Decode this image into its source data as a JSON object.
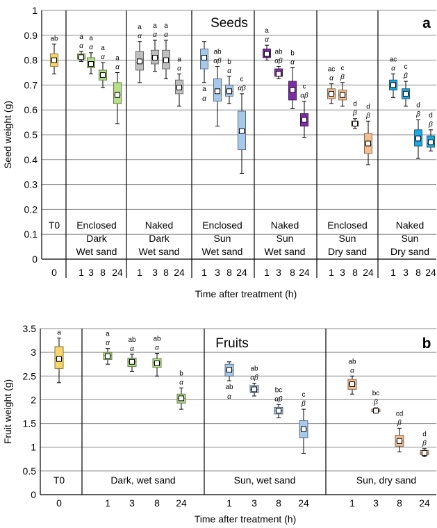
{
  "chart_data": [
    {
      "type": "box",
      "panel_label": "a",
      "title": "Seeds",
      "xlabel": "Time after treatment (h)",
      "ylabel": "Seed weight (g)",
      "ylim": [
        0,
        1
      ],
      "yticks": [
        "0",
        "0.1",
        "0.2",
        "0.3",
        "0.4",
        "0.5",
        "0.6",
        "0.7",
        "0.8",
        "0.9",
        "1"
      ],
      "grid": true,
      "groups": [
        {
          "label": [
            "T0"
          ],
          "color": "#f7d76b",
          "boxes": [
            {
              "x": "0",
              "min": 0.745,
              "q1": 0.775,
              "median": 0.8,
              "mean": 0.8,
              "q3": 0.825,
              "max": 0.865,
              "letter": "ab",
              "greek": ""
            }
          ]
        },
        {
          "label": [
            "Enclosed",
            "Dark",
            "Wet sand"
          ],
          "color": "#b5df89",
          "boxes": [
            {
              "x": "1",
              "min": 0.795,
              "q1": 0.805,
              "median": 0.812,
              "mean": 0.812,
              "q3": 0.825,
              "max": 0.835,
              "letter": "a",
              "greek": "α"
            },
            {
              "x": "3",
              "min": 0.745,
              "q1": 0.77,
              "median": 0.79,
              "mean": 0.785,
              "q3": 0.81,
              "max": 0.83,
              "letter": "a",
              "greek": "α"
            },
            {
              "x": "8",
              "min": 0.69,
              "q1": 0.72,
              "median": 0.74,
              "mean": 0.74,
              "q3": 0.76,
              "max": 0.79,
              "letter": "a",
              "greek": "α"
            },
            {
              "x": "24",
              "min": 0.545,
              "q1": 0.625,
              "median": 0.66,
              "mean": 0.66,
              "q3": 0.71,
              "max": 0.75,
              "letter": "a",
              "greek": "α"
            }
          ]
        },
        {
          "label": [
            "Naked",
            "Dark",
            "Wet sand"
          ],
          "color": "#bfbfbf",
          "boxes": [
            {
              "x": "1",
              "min": 0.71,
              "q1": 0.76,
              "median": 0.79,
              "mean": 0.795,
              "q3": 0.835,
              "max": 0.875,
              "letter": "a",
              "greek": "α"
            },
            {
              "x": "3",
              "min": 0.755,
              "q1": 0.785,
              "median": 0.81,
              "mean": 0.81,
              "q3": 0.84,
              "max": 0.88,
              "letter": "a",
              "greek": "α"
            },
            {
              "x": "8",
              "min": 0.725,
              "q1": 0.765,
              "median": 0.8,
              "mean": 0.8,
              "q3": 0.84,
              "max": 0.88,
              "letter": "a",
              "greek": "α"
            },
            {
              "x": "24",
              "min": 0.615,
              "q1": 0.665,
              "median": 0.69,
              "mean": 0.69,
              "q3": 0.72,
              "max": 0.745,
              "letter": "a",
              "greek": "α"
            }
          ]
        },
        {
          "label": [
            "Enclosed",
            "Sun",
            "Wet sand"
          ],
          "color": "#a6c8ea",
          "boxes": [
            {
              "x": "1",
              "min": 0.71,
              "q1": 0.765,
              "median": 0.8,
              "mean": 0.81,
              "q3": 0.845,
              "max": 0.875,
              "letter": "a",
              "greek": "α",
              "label_below": true
            },
            {
              "x": "3",
              "min": 0.535,
              "q1": 0.635,
              "median": 0.68,
              "mean": 0.675,
              "q3": 0.725,
              "max": 0.775,
              "letter": "ab",
              "greek": "αβ"
            },
            {
              "x": "8",
              "min": 0.625,
              "q1": 0.655,
              "median": 0.675,
              "mean": 0.675,
              "q3": 0.7,
              "max": 0.735,
              "letter": "b",
              "greek": "α"
            },
            {
              "x": "24",
              "min": 0.345,
              "q1": 0.44,
              "median": 0.51,
              "mean": 0.515,
              "q3": 0.595,
              "max": 0.665,
              "letter": "c",
              "greek": "αβ"
            }
          ]
        },
        {
          "label": [
            "Naked",
            "Sun",
            "Wet sand"
          ],
          "color": "#7c2ea6",
          "boxes": [
            {
              "x": "1",
              "min": 0.8,
              "q1": 0.81,
              "median": 0.825,
              "mean": 0.825,
              "q3": 0.845,
              "max": 0.86,
              "letter": "a",
              "greek": "α"
            },
            {
              "x": "3",
              "min": 0.725,
              "q1": 0.735,
              "median": 0.745,
              "mean": 0.745,
              "q3": 0.765,
              "max": 0.775,
              "letter": "ab",
              "greek": "αβ"
            },
            {
              "x": "8",
              "min": 0.605,
              "q1": 0.64,
              "median": 0.675,
              "mean": 0.68,
              "q3": 0.715,
              "max": 0.77,
              "letter": "b",
              "greek": "α"
            },
            {
              "x": "24",
              "min": 0.49,
              "q1": 0.535,
              "median": 0.56,
              "mean": 0.56,
              "q3": 0.585,
              "max": 0.635,
              "letter": "c",
              "greek": "αβ"
            }
          ]
        },
        {
          "label": [
            "Enclosed",
            "Sun",
            "Dry sand"
          ],
          "color": "#f2bf91",
          "boxes": [
            {
              "x": "1",
              "min": 0.625,
              "q1": 0.645,
              "median": 0.665,
              "mean": 0.665,
              "q3": 0.685,
              "max": 0.705,
              "letter": "ac",
              "greek": "α"
            },
            {
              "x": "3",
              "min": 0.615,
              "q1": 0.64,
              "median": 0.66,
              "mean": 0.66,
              "q3": 0.68,
              "max": 0.71,
              "letter": "c",
              "greek": "β"
            },
            {
              "x": "8",
              "min": 0.525,
              "q1": 0.535,
              "median": 0.545,
              "mean": 0.545,
              "q3": 0.555,
              "max": 0.565,
              "letter": "d",
              "greek": "β"
            },
            {
              "x": "24",
              "min": 0.38,
              "q1": 0.425,
              "median": 0.46,
              "mean": 0.465,
              "q3": 0.505,
              "max": 0.555,
              "letter": "d",
              "greek": "β"
            }
          ]
        },
        {
          "label": [
            "Naked",
            "Sun",
            "Dry sand"
          ],
          "color": "#1fa9e0",
          "boxes": [
            {
              "x": "1",
              "min": 0.65,
              "q1": 0.68,
              "median": 0.7,
              "mean": 0.7,
              "q3": 0.72,
              "max": 0.745,
              "letter": "ac",
              "greek": "α"
            },
            {
              "x": "3",
              "min": 0.615,
              "q1": 0.645,
              "median": 0.665,
              "mean": 0.665,
              "q3": 0.685,
              "max": 0.715,
              "letter": "c",
              "greek": "β"
            },
            {
              "x": "8",
              "min": 0.405,
              "q1": 0.455,
              "median": 0.485,
              "mean": 0.485,
              "q3": 0.52,
              "max": 0.56,
              "letter": "d",
              "greek": "β"
            },
            {
              "x": "24",
              "min": 0.435,
              "q1": 0.45,
              "median": 0.465,
              "mean": 0.47,
              "q3": 0.495,
              "max": 0.52,
              "letter": "d",
              "greek": "β"
            }
          ]
        }
      ]
    },
    {
      "type": "box",
      "panel_label": "b",
      "title": "Fruits",
      "xlabel": "Time after treatment (h)",
      "ylabel": "Fruit weight (g)",
      "ylim": [
        0,
        3.5
      ],
      "yticks": [
        "0",
        "0.5",
        "1",
        "1.5",
        "2",
        "2.5",
        "3",
        "3.5"
      ],
      "grid": true,
      "groups": [
        {
          "label": [
            "T0"
          ],
          "color": "#f7d76b",
          "boxes": [
            {
              "x": "0",
              "min": 2.36,
              "q1": 2.66,
              "median": 2.87,
              "mean": 2.86,
              "q3": 3.12,
              "max": 3.3,
              "letter": "a",
              "greek": ""
            }
          ]
        },
        {
          "label": [
            "Dark, wet sand"
          ],
          "color": "#b5df89",
          "boxes": [
            {
              "x": "1",
              "min": 2.75,
              "q1": 2.85,
              "median": 2.93,
              "mean": 2.92,
              "q3": 3.0,
              "max": 3.08,
              "letter": "a",
              "greek": "α"
            },
            {
              "x": "3",
              "min": 2.6,
              "q1": 2.7,
              "median": 2.8,
              "mean": 2.8,
              "q3": 2.88,
              "max": 2.96,
              "letter": "ab",
              "greek": "α"
            },
            {
              "x": "8",
              "min": 2.5,
              "q1": 2.68,
              "median": 2.78,
              "mean": 2.77,
              "q3": 2.87,
              "max": 2.98,
              "letter": "ab",
              "greek": "α"
            },
            {
              "x": "24",
              "min": 1.8,
              "q1": 1.93,
              "median": 2.03,
              "mean": 2.03,
              "q3": 2.12,
              "max": 2.25,
              "letter": "b",
              "greek": "α"
            }
          ]
        },
        {
          "label": [
            "Sun, wet sand"
          ],
          "color": "#a6c8ea",
          "boxes": [
            {
              "x": "1",
              "min": 2.4,
              "q1": 2.5,
              "median": 2.62,
              "mean": 2.63,
              "q3": 2.75,
              "max": 2.8,
              "letter": "ab",
              "greek": "α",
              "label_below": true
            },
            {
              "x": "3",
              "min": 2.08,
              "q1": 2.15,
              "median": 2.22,
              "mean": 2.22,
              "q3": 2.3,
              "max": 2.35,
              "letter": "ab",
              "greek": "αβ"
            },
            {
              "x": "8",
              "min": 1.62,
              "q1": 1.7,
              "median": 1.77,
              "mean": 1.77,
              "q3": 1.84,
              "max": 1.9,
              "letter": "bc",
              "greek": "αβ"
            },
            {
              "x": "24",
              "min": 0.87,
              "q1": 1.2,
              "median": 1.38,
              "mean": 1.38,
              "q3": 1.56,
              "max": 1.8,
              "letter": "c",
              "greek": "β"
            }
          ]
        },
        {
          "label": [
            "Sun, dry sand"
          ],
          "color": "#f2bf91",
          "boxes": [
            {
              "x": "1",
              "min": 2.12,
              "q1": 2.22,
              "median": 2.33,
              "mean": 2.33,
              "q3": 2.43,
              "max": 2.5,
              "letter": "ab",
              "greek": "α"
            },
            {
              "x": "3",
              "min": 1.72,
              "q1": 1.75,
              "median": 1.77,
              "mean": 1.77,
              "q3": 1.8,
              "max": 1.83,
              "letter": "bc",
              "greek": "β"
            },
            {
              "x": "8",
              "min": 0.9,
              "q1": 1.02,
              "median": 1.13,
              "mean": 1.13,
              "q3": 1.25,
              "max": 1.4,
              "letter": "cd",
              "greek": "β"
            },
            {
              "x": "24",
              "min": 0.8,
              "q1": 0.84,
              "median": 0.88,
              "mean": 0.88,
              "q3": 0.93,
              "max": 0.97,
              "letter": "d",
              "greek": "β"
            }
          ]
        }
      ]
    }
  ]
}
